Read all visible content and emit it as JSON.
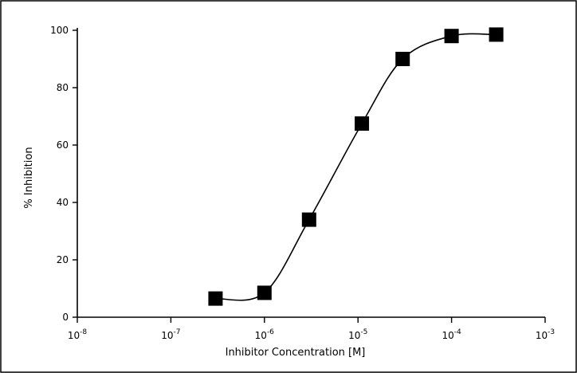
{
  "chart_data": {
    "type": "scatter",
    "title": "",
    "xlabel": "Inhibitor Concentration [M]",
    "ylabel": "% Inhibition",
    "xscale": "log",
    "xlim": [
      1e-08,
      0.001
    ],
    "ylim": [
      0,
      100
    ],
    "grid": false,
    "legend": "none",
    "x_tick_labels": [
      {
        "base": "10",
        "exp": "-8"
      },
      {
        "base": "10",
        "exp": "-7"
      },
      {
        "base": "10",
        "exp": "-6"
      },
      {
        "base": "10",
        "exp": "-5"
      },
      {
        "base": "10",
        "exp": "-4"
      },
      {
        "base": "10",
        "exp": "-3"
      }
    ],
    "y_ticks": [
      "0",
      "20",
      "40",
      "60",
      "80",
      "100"
    ],
    "series": [
      {
        "x": [
          3e-07,
          1e-06,
          3e-06,
          1.1e-05,
          3e-05,
          0.0001,
          0.0003
        ],
        "y": [
          6.5,
          8.5,
          34,
          67.5,
          90,
          98,
          98.5
        ]
      }
    ],
    "marker_color": "#000000",
    "line_color": "#000000"
  }
}
